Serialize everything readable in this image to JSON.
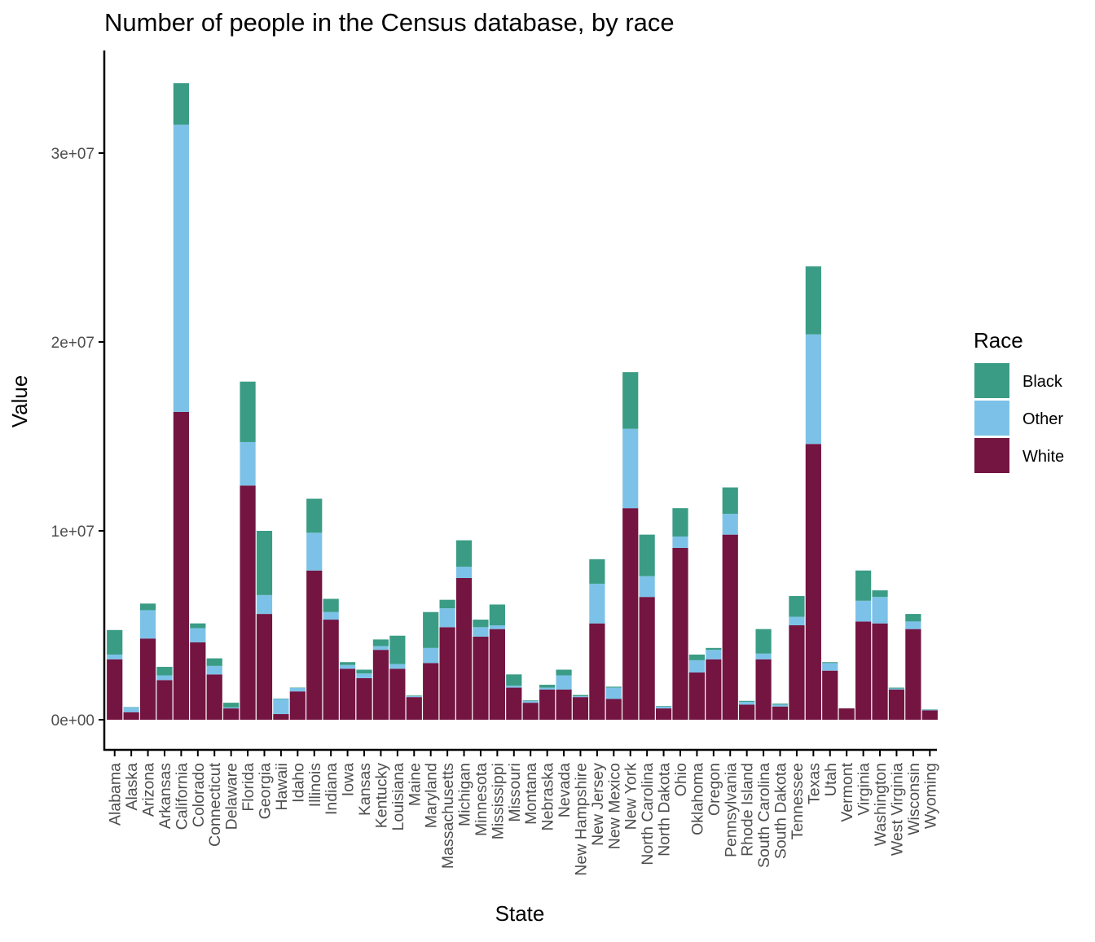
{
  "colors": {
    "Black": "#3a9c85",
    "Other": "#7cc2e8",
    "White": "#731441",
    "axis": "#000000",
    "tick_text": "#4d4d4d"
  },
  "chart_data": {
    "type": "bar",
    "stacked": true,
    "title": "Number of people in the Census database, by race",
    "xlabel": "State",
    "ylabel": "Value",
    "ylim": [
      0,
      34000000
    ],
    "y_ticks": [
      {
        "value": 0,
        "label": "0e+00"
      },
      {
        "value": 10000000,
        "label": "1e+07"
      },
      {
        "value": 20000000,
        "label": "2e+07"
      },
      {
        "value": 30000000,
        "label": "3e+07"
      }
    ],
    "grid": false,
    "legend": {
      "title": "Race",
      "position": "right",
      "items": [
        "Black",
        "Other",
        "White"
      ]
    },
    "categories": [
      "Alabama",
      "Alaska",
      "Arizona",
      "Arkansas",
      "California",
      "Colorado",
      "Connecticut",
      "Delaware",
      "Florida",
      "Georgia",
      "Hawaii",
      "Idaho",
      "Illinois",
      "Indiana",
      "Iowa",
      "Kansas",
      "Kentucky",
      "Louisiana",
      "Maine",
      "Maryland",
      "Massachusetts",
      "Michigan",
      "Minnesota",
      "Mississippi",
      "Missouri",
      "Montana",
      "Nebraska",
      "Nevada",
      "New Hampshire",
      "New Jersey",
      "New Mexico",
      "New York",
      "North Carolina",
      "North Dakota",
      "Ohio",
      "Oklahoma",
      "Oregon",
      "Pennsylvania",
      "Rhode Island",
      "South Carolina",
      "South Dakota",
      "Tennessee",
      "Texas",
      "Utah",
      "Vermont",
      "Virginia",
      "Washington",
      "West Virginia",
      "Wisconsin",
      "Wyoming"
    ],
    "series": [
      {
        "name": "White",
        "values": [
          3200000,
          400000,
          4300000,
          2100000,
          16300000,
          4100000,
          2400000,
          600000,
          12400000,
          5600000,
          300000,
          1500000,
          7900000,
          5300000,
          2700000,
          2200000,
          3700000,
          2700000,
          1200000,
          3000000,
          4900000,
          7500000,
          4400000,
          4800000,
          1700000,
          900000,
          1600000,
          1600000,
          1200000,
          5100000,
          1100000,
          11200000,
          6500000,
          600000,
          9100000,
          2500000,
          3200000,
          9800000,
          800000,
          3200000,
          700000,
          5000000,
          14600000,
          2600000,
          600000,
          5200000,
          5100000,
          1600000,
          4800000,
          500000
        ]
      },
      {
        "name": "Other",
        "values": [
          250000,
          250000,
          1500000,
          250000,
          15200000,
          750000,
          450000,
          50000,
          2300000,
          1000000,
          800000,
          180000,
          2000000,
          400000,
          200000,
          250000,
          200000,
          250000,
          50000,
          800000,
          1000000,
          600000,
          500000,
          200000,
          100000,
          100000,
          100000,
          750000,
          50000,
          2100000,
          600000,
          4200000,
          1100000,
          100000,
          600000,
          650000,
          500000,
          1100000,
          150000,
          300000,
          100000,
          450000,
          5800000,
          400000,
          0,
          1100000,
          1400000,
          50000,
          400000,
          30000
        ]
      },
      {
        "name": "Black",
        "values": [
          1300000,
          20000,
          350000,
          450000,
          2200000,
          250000,
          400000,
          250000,
          3200000,
          3400000,
          20000,
          20000,
          1800000,
          700000,
          150000,
          200000,
          350000,
          1500000,
          30000,
          1900000,
          450000,
          1400000,
          400000,
          1100000,
          600000,
          30000,
          150000,
          300000,
          60000,
          1300000,
          50000,
          3000000,
          2200000,
          30000,
          1500000,
          300000,
          100000,
          1400000,
          50000,
          1300000,
          50000,
          1100000,
          3600000,
          50000,
          0,
          1600000,
          350000,
          50000,
          400000,
          20000
        ]
      }
    ]
  }
}
